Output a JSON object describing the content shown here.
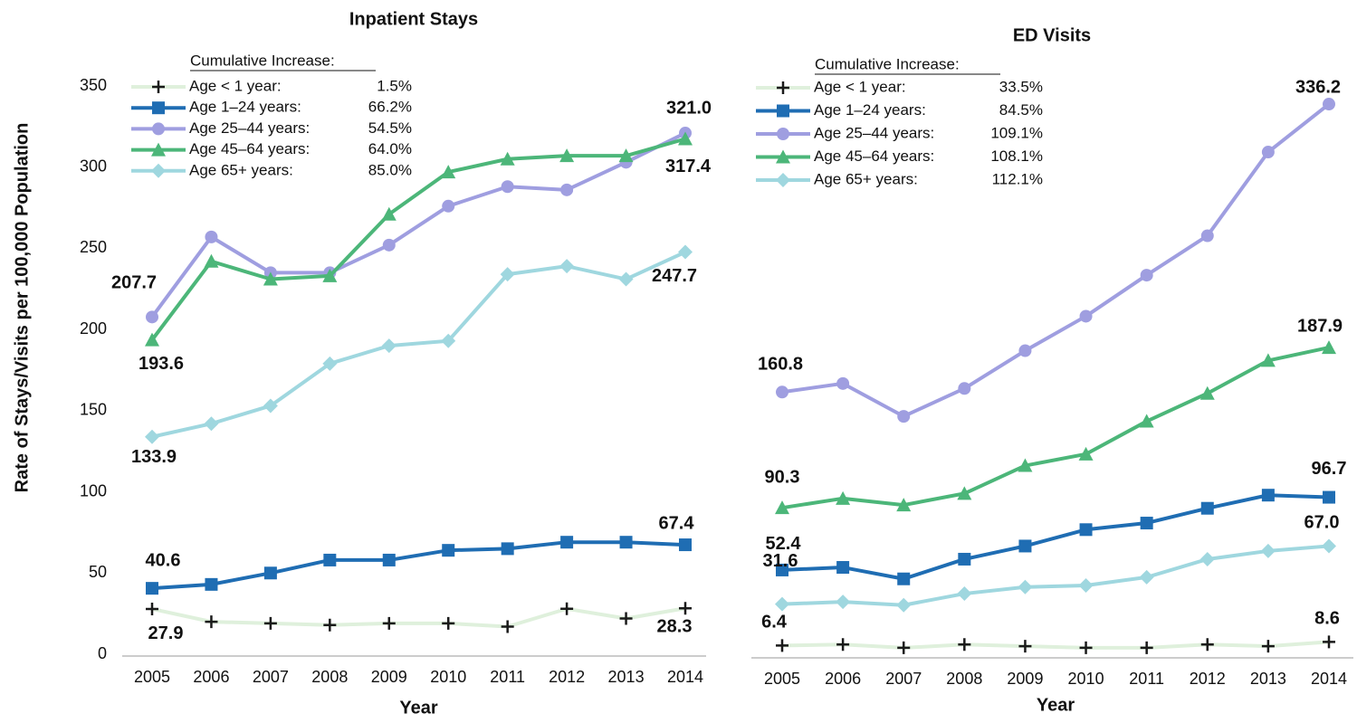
{
  "chart_data": [
    {
      "type": "line",
      "title": "Inpatient Stays",
      "xlabel": "Year",
      "ylabel": "Rate of Stays/Visits per 100,000 Population",
      "legend_title": "Cumulative Increase:",
      "categories": [
        "2005",
        "2006",
        "2007",
        "2008",
        "2009",
        "2010",
        "2011",
        "2012",
        "2013",
        "2014"
      ],
      "ylim": [
        0,
        350
      ],
      "yticks": [
        0,
        50,
        100,
        150,
        200,
        250,
        300,
        350
      ],
      "series": [
        {
          "name": "Age < 1 year:",
          "increase": "1.5%",
          "color": "#dff0dc",
          "marker": "plus",
          "marker_color": "#1a1a1a",
          "values": [
            27.9,
            20,
            19,
            18,
            19,
            19,
            17,
            28,
            22,
            28.3
          ],
          "value_labels": [
            "27.9",
            null,
            null,
            null,
            null,
            null,
            null,
            null,
            null,
            "28.3"
          ]
        },
        {
          "name": "Age 1–24 years:",
          "increase": "66.2%",
          "color": "#1f6db3",
          "marker": "square",
          "marker_color": "#1f6db3",
          "values": [
            40.6,
            43,
            50,
            58,
            58,
            64,
            65,
            69,
            69,
            67.4
          ],
          "value_labels": [
            "40.6",
            null,
            null,
            null,
            null,
            null,
            null,
            null,
            null,
            "67.4"
          ]
        },
        {
          "name": "Age 25–44 years:",
          "increase": "54.5%",
          "color": "#9f9ee0",
          "marker": "circle",
          "marker_color": "#9f9ee0",
          "values": [
            207.7,
            257,
            235,
            235,
            252,
            276,
            288,
            286,
            303,
            321.0
          ],
          "value_labels": [
            "207.7",
            null,
            null,
            null,
            null,
            null,
            null,
            null,
            null,
            "321.0"
          ]
        },
        {
          "name": "Age 45–64 years:",
          "increase": "64.0%",
          "color": "#4cb679",
          "marker": "triangle",
          "marker_color": "#4cb679",
          "values": [
            193.6,
            242,
            231,
            233,
            271,
            297,
            305,
            307,
            307,
            317.4
          ],
          "value_labels": [
            "193.6",
            null,
            null,
            null,
            null,
            null,
            null,
            null,
            null,
            "317.4"
          ]
        },
        {
          "name": "Age 65+ years:",
          "increase": "85.0%",
          "color": "#9fd7df",
          "marker": "diamond",
          "marker_color": "#9fd7df",
          "values": [
            133.9,
            142,
            153,
            179,
            190,
            193,
            234,
            239,
            231,
            247.7
          ],
          "value_labels": [
            "133.9",
            null,
            null,
            null,
            null,
            null,
            null,
            null,
            null,
            "247.7"
          ]
        }
      ]
    },
    {
      "type": "line",
      "title": "ED Visits",
      "xlabel": "Year",
      "legend_title": "Cumulative Increase:",
      "categories": [
        "2005",
        "2006",
        "2007",
        "2008",
        "2009",
        "2010",
        "2011",
        "2012",
        "2013",
        "2014"
      ],
      "ylim": [
        0,
        350
      ],
      "series": [
        {
          "name": "Age < 1 year:",
          "increase": "33.5%",
          "color": "#dff0dc",
          "marker": "plus",
          "marker_color": "#1a1a1a",
          "values": [
            6.4,
            7,
            5,
            7,
            6,
            5,
            5,
            7,
            6,
            8.6
          ],
          "value_labels": [
            "6.4",
            null,
            null,
            null,
            null,
            null,
            null,
            null,
            null,
            "8.6"
          ]
        },
        {
          "name": "Age 1–24 years:",
          "increase": "84.5%",
          "color": "#1f6db3",
          "marker": "square",
          "marker_color": "#1f6db3",
          "values": [
            52.4,
            54,
            47,
            59,
            67,
            77,
            81,
            90,
            98,
            96.7
          ],
          "value_labels": [
            "52.4",
            null,
            null,
            null,
            null,
            null,
            null,
            null,
            null,
            "96.7"
          ]
        },
        {
          "name": "Age 25–44 years:",
          "increase": "109.1%",
          "color": "#9f9ee0",
          "marker": "circle",
          "marker_color": "#9f9ee0",
          "values": [
            160.8,
            166,
            146,
            163,
            186,
            207,
            232,
            256,
            307,
            336.2
          ],
          "value_labels": [
            "160.8",
            null,
            null,
            null,
            null,
            null,
            null,
            null,
            null,
            "336.2"
          ]
        },
        {
          "name": "Age 45–64 years:",
          "increase": "108.1%",
          "color": "#4cb679",
          "marker": "triangle",
          "marker_color": "#4cb679",
          "values": [
            90.3,
            96,
            92,
            99,
            116,
            123,
            143,
            160,
            180,
            187.9
          ],
          "value_labels": [
            "90.3",
            null,
            null,
            null,
            null,
            null,
            null,
            null,
            null,
            "187.9"
          ]
        },
        {
          "name": "Age 65+ years:",
          "increase": "112.1%",
          "color": "#9fd7df",
          "marker": "diamond",
          "marker_color": "#9fd7df",
          "values": [
            31.6,
            33,
            31,
            38,
            42,
            43,
            48,
            59,
            64,
            67.0
          ],
          "value_labels": [
            "31.6",
            null,
            null,
            null,
            null,
            null,
            null,
            null,
            null,
            "67.0"
          ]
        }
      ]
    }
  ]
}
